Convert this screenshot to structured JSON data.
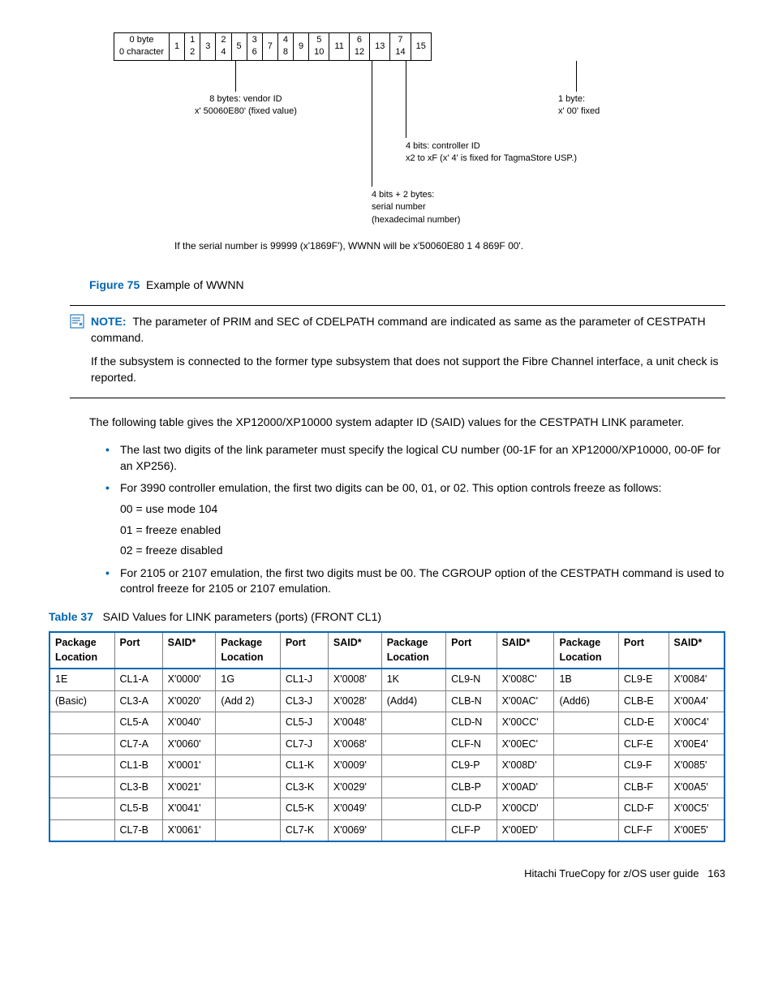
{
  "diagram": {
    "header_row": [
      "0 byte\n0 character",
      "1",
      "1\n2",
      "3",
      "2\n4",
      "5",
      "3\n6",
      "7",
      "4\n8",
      "9",
      "5\n10",
      "11",
      "6\n12",
      "13",
      "7\n14",
      "15"
    ],
    "vendor_label_1": "8 bytes: vendor ID",
    "vendor_label_2": "x' 50060E80' (fixed value)",
    "byte1_label_1": "1 byte:",
    "byte1_label_2": "x' 00' fixed",
    "ctrl_label_1": "4 bits: controller ID",
    "ctrl_label_2": "x2 to xF (x' 4' is fixed for TagmaStore USP.)",
    "serial_label_1": "4 bits + 2 bytes:",
    "serial_label_2": "serial number",
    "serial_label_3": "(hexadecimal number)",
    "footnote": "If the serial number is 99999 (x'1869F'), WWNN will be x'50060E80 1 4 869F 00'."
  },
  "figure": {
    "label": "Figure 75",
    "title": "Example of WWNN"
  },
  "note": {
    "label": "NOTE:",
    "text_1": "The parameter of PRIM and SEC of CDELPATH command are indicated as same as the parameter of CESTPATH command.",
    "text_2": "If the subsystem is connected to the former type subsystem that does not support the Fibre Channel interface, a unit check is reported."
  },
  "para_intro": "The following table gives the XP12000/XP10000 system adapter ID (SAID) values for the CESTPATH LINK parameter.",
  "bullets": {
    "b1": "The last two digits of the link parameter must specify the logical CU number (00-1F for an XP12000/XP10000, 00-0F for an XP256).",
    "b2": "For 3990 controller emulation, the first two digits can be 00, 01, or 02. This option controls freeze as follows:",
    "b2_s1": "00 = use mode 104",
    "b2_s2": "01 = freeze enabled",
    "b2_s3": "02 = freeze disabled",
    "b3": "For 2105 or 2107 emulation, the first two digits must be 00. The CGROUP option of the CESTPATH command is used to control freeze for 2105 or 2107 emulation."
  },
  "table": {
    "label": "Table 37",
    "title": "SAID Values for  LINK parameters (ports) (FRONT CL1)",
    "headers": [
      "Package Location",
      "Port",
      "SAID*",
      "Package Location",
      "Port",
      "SAID*",
      "Package Location",
      "Port",
      "SAID*",
      "Package Location",
      "Port",
      "SAID*"
    ],
    "rows": [
      [
        "1E",
        "CL1-A",
        "X'0000'",
        "1G",
        "CL1-J",
        "X'0008'",
        "1K",
        "CL9-N",
        "X'008C'",
        "1B",
        "CL9-E",
        "X'0084'"
      ],
      [
        "(Basic)",
        "CL3-A",
        "X'0020'",
        "(Add 2)",
        "CL3-J",
        "X'0028'",
        "(Add4)",
        "CLB-N",
        "X'00AC'",
        "(Add6)",
        "CLB-E",
        "X'00A4'"
      ],
      [
        "",
        "CL5-A",
        "X'0040'",
        "",
        "CL5-J",
        "X'0048'",
        "",
        "CLD-N",
        "X'00CC'",
        "",
        "CLD-E",
        "X'00C4'"
      ],
      [
        "",
        "CL7-A",
        "X'0060'",
        "",
        "CL7-J",
        "X'0068'",
        "",
        "CLF-N",
        "X'00EC'",
        "",
        "CLF-E",
        "X'00E4'"
      ],
      [
        "",
        "CL1-B",
        "X'0001'",
        "",
        "CL1-K",
        "X'0009'",
        "",
        "CL9-P",
        "X'008D'",
        "",
        "CL9-F",
        "X'0085'"
      ],
      [
        "",
        "CL3-B",
        "X'0021'",
        "",
        "CL3-K",
        "X'0029'",
        "",
        "CLB-P",
        "X'00AD'",
        "",
        "CLB-F",
        "X'00A5'"
      ],
      [
        "",
        "CL5-B",
        "X'0041'",
        "",
        "CL5-K",
        "X'0049'",
        "",
        "CLD-P",
        "X'00CD'",
        "",
        "CLD-F",
        "X'00C5'"
      ],
      [
        "",
        "CL7-B",
        "X'0061'",
        "",
        "CL7-K",
        "X'0069'",
        "",
        "CLF-P",
        "X'00ED'",
        "",
        "CLF-F",
        "X'00E5'"
      ]
    ]
  },
  "footer": {
    "text": "Hitachi TrueCopy for z/OS user guide",
    "page": "163"
  }
}
